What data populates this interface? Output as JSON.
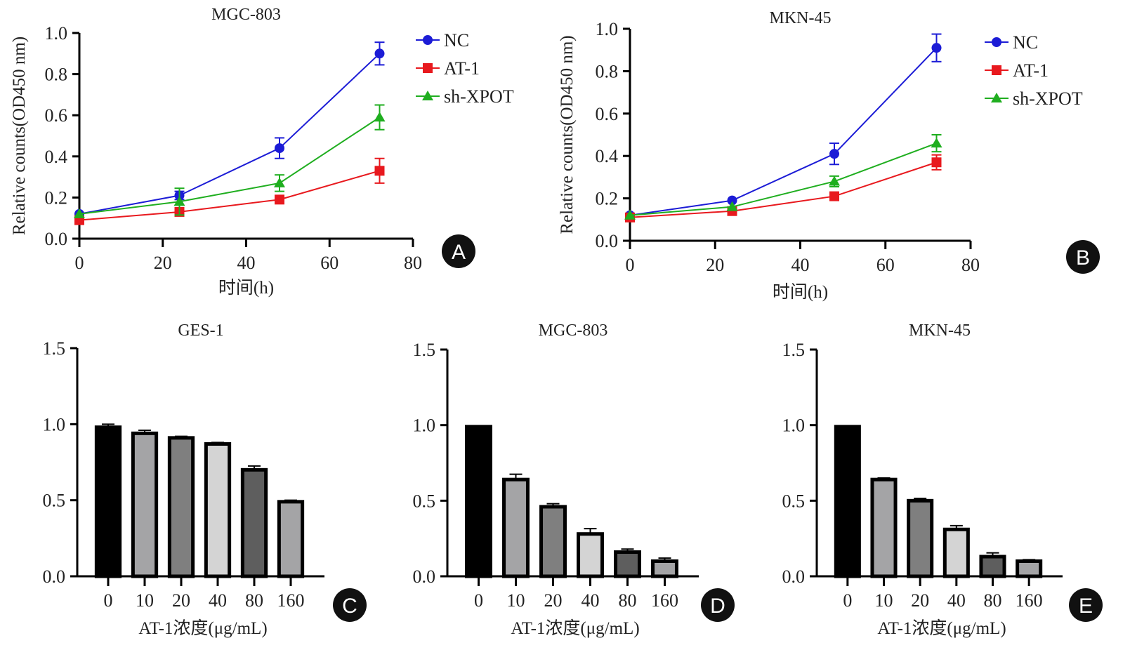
{
  "chart_data": [
    {
      "panel": "A",
      "type": "line",
      "title": "MGC-803",
      "xlabel": "时间(h)",
      "ylabel": "Relative counts(OD450 nm)",
      "xlim": [
        0,
        80
      ],
      "ylim": [
        0,
        1.0
      ],
      "xticks": [
        "0",
        "20",
        "40",
        "60",
        "80"
      ],
      "yticks": [
        "0.0",
        "0.2",
        "0.4",
        "0.6",
        "0.8",
        "1.0"
      ],
      "x": [
        0,
        24,
        48,
        72
      ],
      "legend_position": "top-right",
      "series": [
        {
          "name": "NC",
          "color": "#1c1cd6",
          "marker": "circle",
          "values": [
            0.12,
            0.21,
            0.44,
            0.9
          ],
          "errors": [
            0.01,
            0.02,
            0.05,
            0.055
          ]
        },
        {
          "name": "AT-1",
          "color": "#e8191e",
          "marker": "square",
          "values": [
            0.09,
            0.13,
            0.19,
            0.33
          ],
          "errors": [
            0.01,
            0.01,
            0.015,
            0.06
          ]
        },
        {
          "name": "sh-XPOT",
          "color": "#1fae1f",
          "marker": "triangle",
          "values": [
            0.12,
            0.18,
            0.27,
            0.59
          ],
          "errors": [
            0.01,
            0.065,
            0.04,
            0.06
          ]
        }
      ]
    },
    {
      "panel": "B",
      "type": "line",
      "title": "MKN-45",
      "xlabel": "时间(h)",
      "ylabel": "Relative counts(OD450 nm)",
      "xlim": [
        0,
        80
      ],
      "ylim": [
        0,
        1.0
      ],
      "xticks": [
        "0",
        "20",
        "40",
        "60",
        "80"
      ],
      "yticks": [
        "0.0",
        "0.2",
        "0.4",
        "0.6",
        "0.8",
        "1.0"
      ],
      "x": [
        0,
        24,
        48,
        72
      ],
      "legend_position": "top-right",
      "series": [
        {
          "name": "NC",
          "color": "#1c1cd6",
          "marker": "circle",
          "values": [
            0.12,
            0.19,
            0.41,
            0.91
          ],
          "errors": [
            0.01,
            0.01,
            0.05,
            0.065
          ]
        },
        {
          "name": "AT-1",
          "color": "#e8191e",
          "marker": "square",
          "values": [
            0.11,
            0.14,
            0.21,
            0.37
          ],
          "errors": [
            0.01,
            0.01,
            0.015,
            0.035
          ]
        },
        {
          "name": "sh-XPOT",
          "color": "#1fae1f",
          "marker": "triangle",
          "values": [
            0.12,
            0.16,
            0.28,
            0.46
          ],
          "errors": [
            0.01,
            0.01,
            0.025,
            0.04
          ]
        }
      ]
    },
    {
      "panel": "C",
      "type": "bar",
      "title": "GES-1",
      "xlabel": "AT-1浓度(μg/mL)",
      "ylabel": "",
      "ylim": [
        0,
        1.5
      ],
      "yticks": [
        "0.0",
        "0.5",
        "1.0",
        "1.5"
      ],
      "categories": [
        "0",
        "10",
        "20",
        "40",
        "80",
        "160"
      ],
      "values": [
        0.98,
        0.94,
        0.91,
        0.87,
        0.7,
        0.49
      ],
      "errors": [
        0.02,
        0.02,
        0.01,
        0.01,
        0.025,
        0.01
      ],
      "bar_colors": [
        "#000000",
        "#a4a4a6",
        "#7f7f7f",
        "#d4d4d4",
        "#5e5e5e",
        "#a4a4a6"
      ]
    },
    {
      "panel": "D",
      "type": "bar",
      "title": "MGC-803",
      "xlabel": "AT-1浓度(μg/mL)",
      "ylabel": "",
      "ylim": [
        0,
        1.5
      ],
      "yticks": [
        "0.0",
        "0.5",
        "1.0",
        "1.5"
      ],
      "categories": [
        "0",
        "10",
        "20",
        "40",
        "80",
        "160"
      ],
      "values": [
        0.99,
        0.64,
        0.46,
        0.28,
        0.16,
        0.1
      ],
      "errors": [
        0.005,
        0.035,
        0.02,
        0.035,
        0.02,
        0.02
      ],
      "bar_colors": [
        "#000000",
        "#a4a4a6",
        "#7f7f7f",
        "#d4d4d4",
        "#5e5e5e",
        "#a4a4a6"
      ]
    },
    {
      "panel": "E",
      "type": "bar",
      "title": "MKN-45",
      "xlabel": "AT-1浓度(μg/mL)",
      "ylabel": "",
      "ylim": [
        0,
        1.5
      ],
      "yticks": [
        "0.0",
        "0.5",
        "1.0",
        "1.5"
      ],
      "categories": [
        "0",
        "10",
        "20",
        "40",
        "80",
        "160"
      ],
      "values": [
        0.99,
        0.64,
        0.5,
        0.31,
        0.13,
        0.1
      ],
      "errors": [
        0.005,
        0.01,
        0.015,
        0.025,
        0.025,
        0.01
      ],
      "bar_colors": [
        "#000000",
        "#a4a4a6",
        "#7f7f7f",
        "#d4d4d4",
        "#5e5e5e",
        "#a4a4a6"
      ]
    }
  ]
}
